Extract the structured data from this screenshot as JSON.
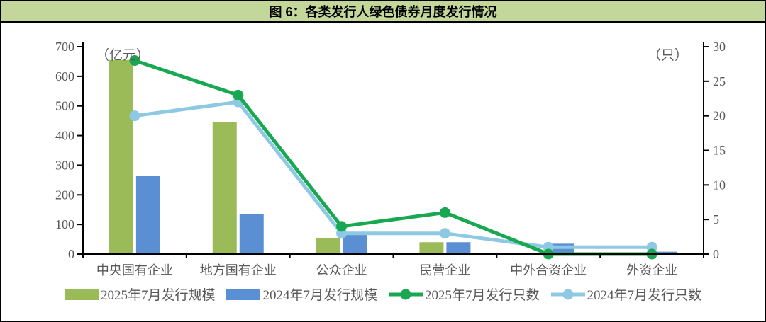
{
  "window": {
    "title": "图 6：各类发行人绿色债券月度发行情况"
  },
  "chart_data": {
    "type": "bar+line combo",
    "title": "图 6：各类发行人绿色债券月度发行情况",
    "categories": [
      "中央国有企业",
      "地方国有企业",
      "公众企业",
      "民营企业",
      "中外合资企业",
      "外资企业"
    ],
    "series": [
      {
        "name": "2025年7月发行规模",
        "type": "bar",
        "axis": "left",
        "color": "#9bbb59",
        "values": [
          655,
          445,
          55,
          40,
          0,
          0
        ]
      },
      {
        "name": "2024年7月发行规模",
        "type": "bar",
        "axis": "left",
        "color": "#5b8fd4",
        "values": [
          265,
          135,
          70,
          40,
          35,
          8
        ]
      },
      {
        "name": "2025年7月发行只数",
        "type": "line",
        "axis": "right",
        "color": "#19a852",
        "values": [
          28,
          23,
          4,
          6,
          0,
          0
        ]
      },
      {
        "name": "2024年7月发行只数",
        "type": "line",
        "axis": "right",
        "color": "#8dc9e3",
        "values": [
          20,
          22,
          3,
          3,
          1,
          1
        ]
      }
    ],
    "left_axis": {
      "unit": "（亿元）",
      "min": 0,
      "max": 700,
      "step": 100,
      "ticks": [
        0,
        100,
        200,
        300,
        400,
        500,
        600,
        700
      ]
    },
    "right_axis": {
      "unit": "（只）",
      "min": 0,
      "max": 30,
      "step": 5,
      "ticks": [
        0,
        5,
        10,
        15,
        20,
        25,
        30
      ]
    },
    "grid": false,
    "legend_position": "bottom"
  },
  "colors": {
    "title_bar_bg": "#c4d79b",
    "axis_line": "#000000",
    "tick_text": "#595959",
    "legend_text": "#595959",
    "bar_2025": "#9bbb59",
    "bar_2024": "#5b8fd4",
    "line_2025": "#19a852",
    "line_2024": "#8dc9e3"
  }
}
